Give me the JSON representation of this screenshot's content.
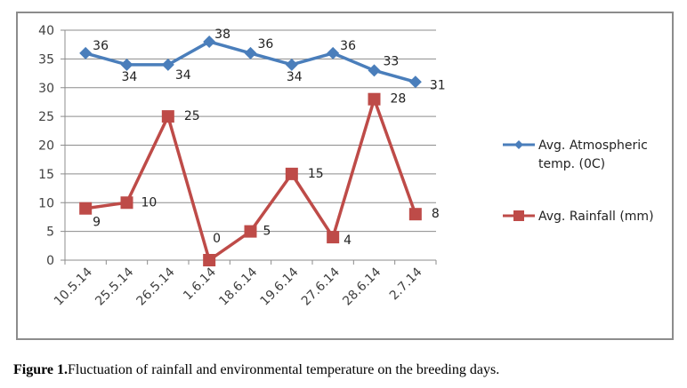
{
  "chart_data": {
    "type": "line",
    "title": "",
    "xlabel": "",
    "ylabel": "",
    "categories": [
      "10.5.14",
      "25.5.14",
      "26.5.14",
      "1.6.14",
      "18.6.14",
      "19.6.14",
      "27.6.14",
      "28.6.14",
      "2.7.14"
    ],
    "ylim": [
      0,
      40
    ],
    "yticks": [
      0,
      5,
      10,
      15,
      20,
      25,
      30,
      35,
      40
    ],
    "grid": true,
    "legend_position": "right",
    "series": [
      {
        "name": "Avg. Atmospheric temp. (0C)",
        "legend_lines": [
          "Avg. Atmospheric",
          "temp. (0C)"
        ],
        "color": "#4a7ebb",
        "marker": "diamond",
        "values": [
          36,
          34,
          34,
          38,
          36,
          34,
          36,
          33,
          31
        ]
      },
      {
        "name": "Avg. Rainfall (mm)",
        "legend_lines": [
          "Avg. Rainfall (mm)"
        ],
        "color": "#be4b48",
        "marker": "square",
        "values": [
          9,
          10,
          25,
          0,
          5,
          15,
          4,
          28,
          8
        ]
      }
    ]
  },
  "caption": {
    "label": "Figure 1.",
    "text": "Fluctuation of rainfall and environmental temperature on the breeding days."
  }
}
